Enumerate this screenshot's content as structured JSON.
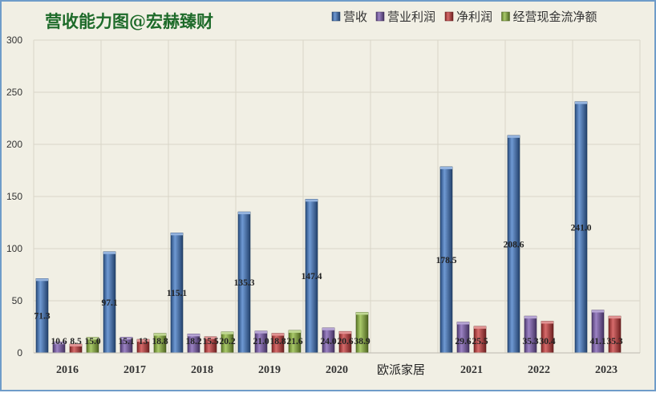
{
  "chart_data": {
    "type": "bar",
    "title": "营收能力图@宏赫臻财",
    "categories": [
      "2016",
      "2017",
      "2018",
      "2019",
      "2020",
      "",
      "2021",
      "2022",
      "2023"
    ],
    "series": [
      {
        "name": "营收",
        "color": "#3f77c4",
        "values": [
          71.3,
          97.1,
          115.1,
          135.3,
          147.4,
          null,
          178.5,
          208.6,
          241.0
        ],
        "labels": [
          "71.3",
          "97.1",
          "115.1",
          "135.3",
          "147.4",
          "",
          "178.5",
          "208.6",
          "241.0"
        ]
      },
      {
        "name": "营业利润",
        "color": "#7b5ab0",
        "values": [
          10.6,
          15.1,
          18.2,
          21.0,
          24.0,
          null,
          29.6,
          35.3,
          41.1
        ],
        "labels": [
          "10.6",
          "15.1",
          "18.2",
          "21.0",
          "24.0",
          "",
          "29.6",
          "35.3",
          "41.1"
        ]
      },
      {
        "name": "净利润",
        "color": "#c83a3a",
        "values": [
          8.5,
          13.0,
          15.5,
          18.8,
          20.6,
          null,
          25.5,
          30.4,
          35.3
        ],
        "labels": [
          "8.5",
          "13",
          "15.5",
          "18.8",
          "20.6",
          "",
          "25.5",
          "30.4",
          "35.3"
        ]
      },
      {
        "name": "经营现金流净额",
        "color": "#8db83a",
        "values": [
          15.0,
          18.8,
          20.2,
          21.6,
          38.9,
          null,
          null,
          null,
          null
        ],
        "labels": [
          "15.0",
          "18.8",
          "20.2",
          "21.6",
          "38.9",
          "",
          "",
          "",
          ""
        ]
      }
    ],
    "ylim": [
      0,
      300
    ],
    "yticks": [
      0,
      50,
      100,
      150,
      200,
      250,
      300
    ],
    "grid": true,
    "legend_position": "top-right",
    "watermark": "欧派家居"
  }
}
